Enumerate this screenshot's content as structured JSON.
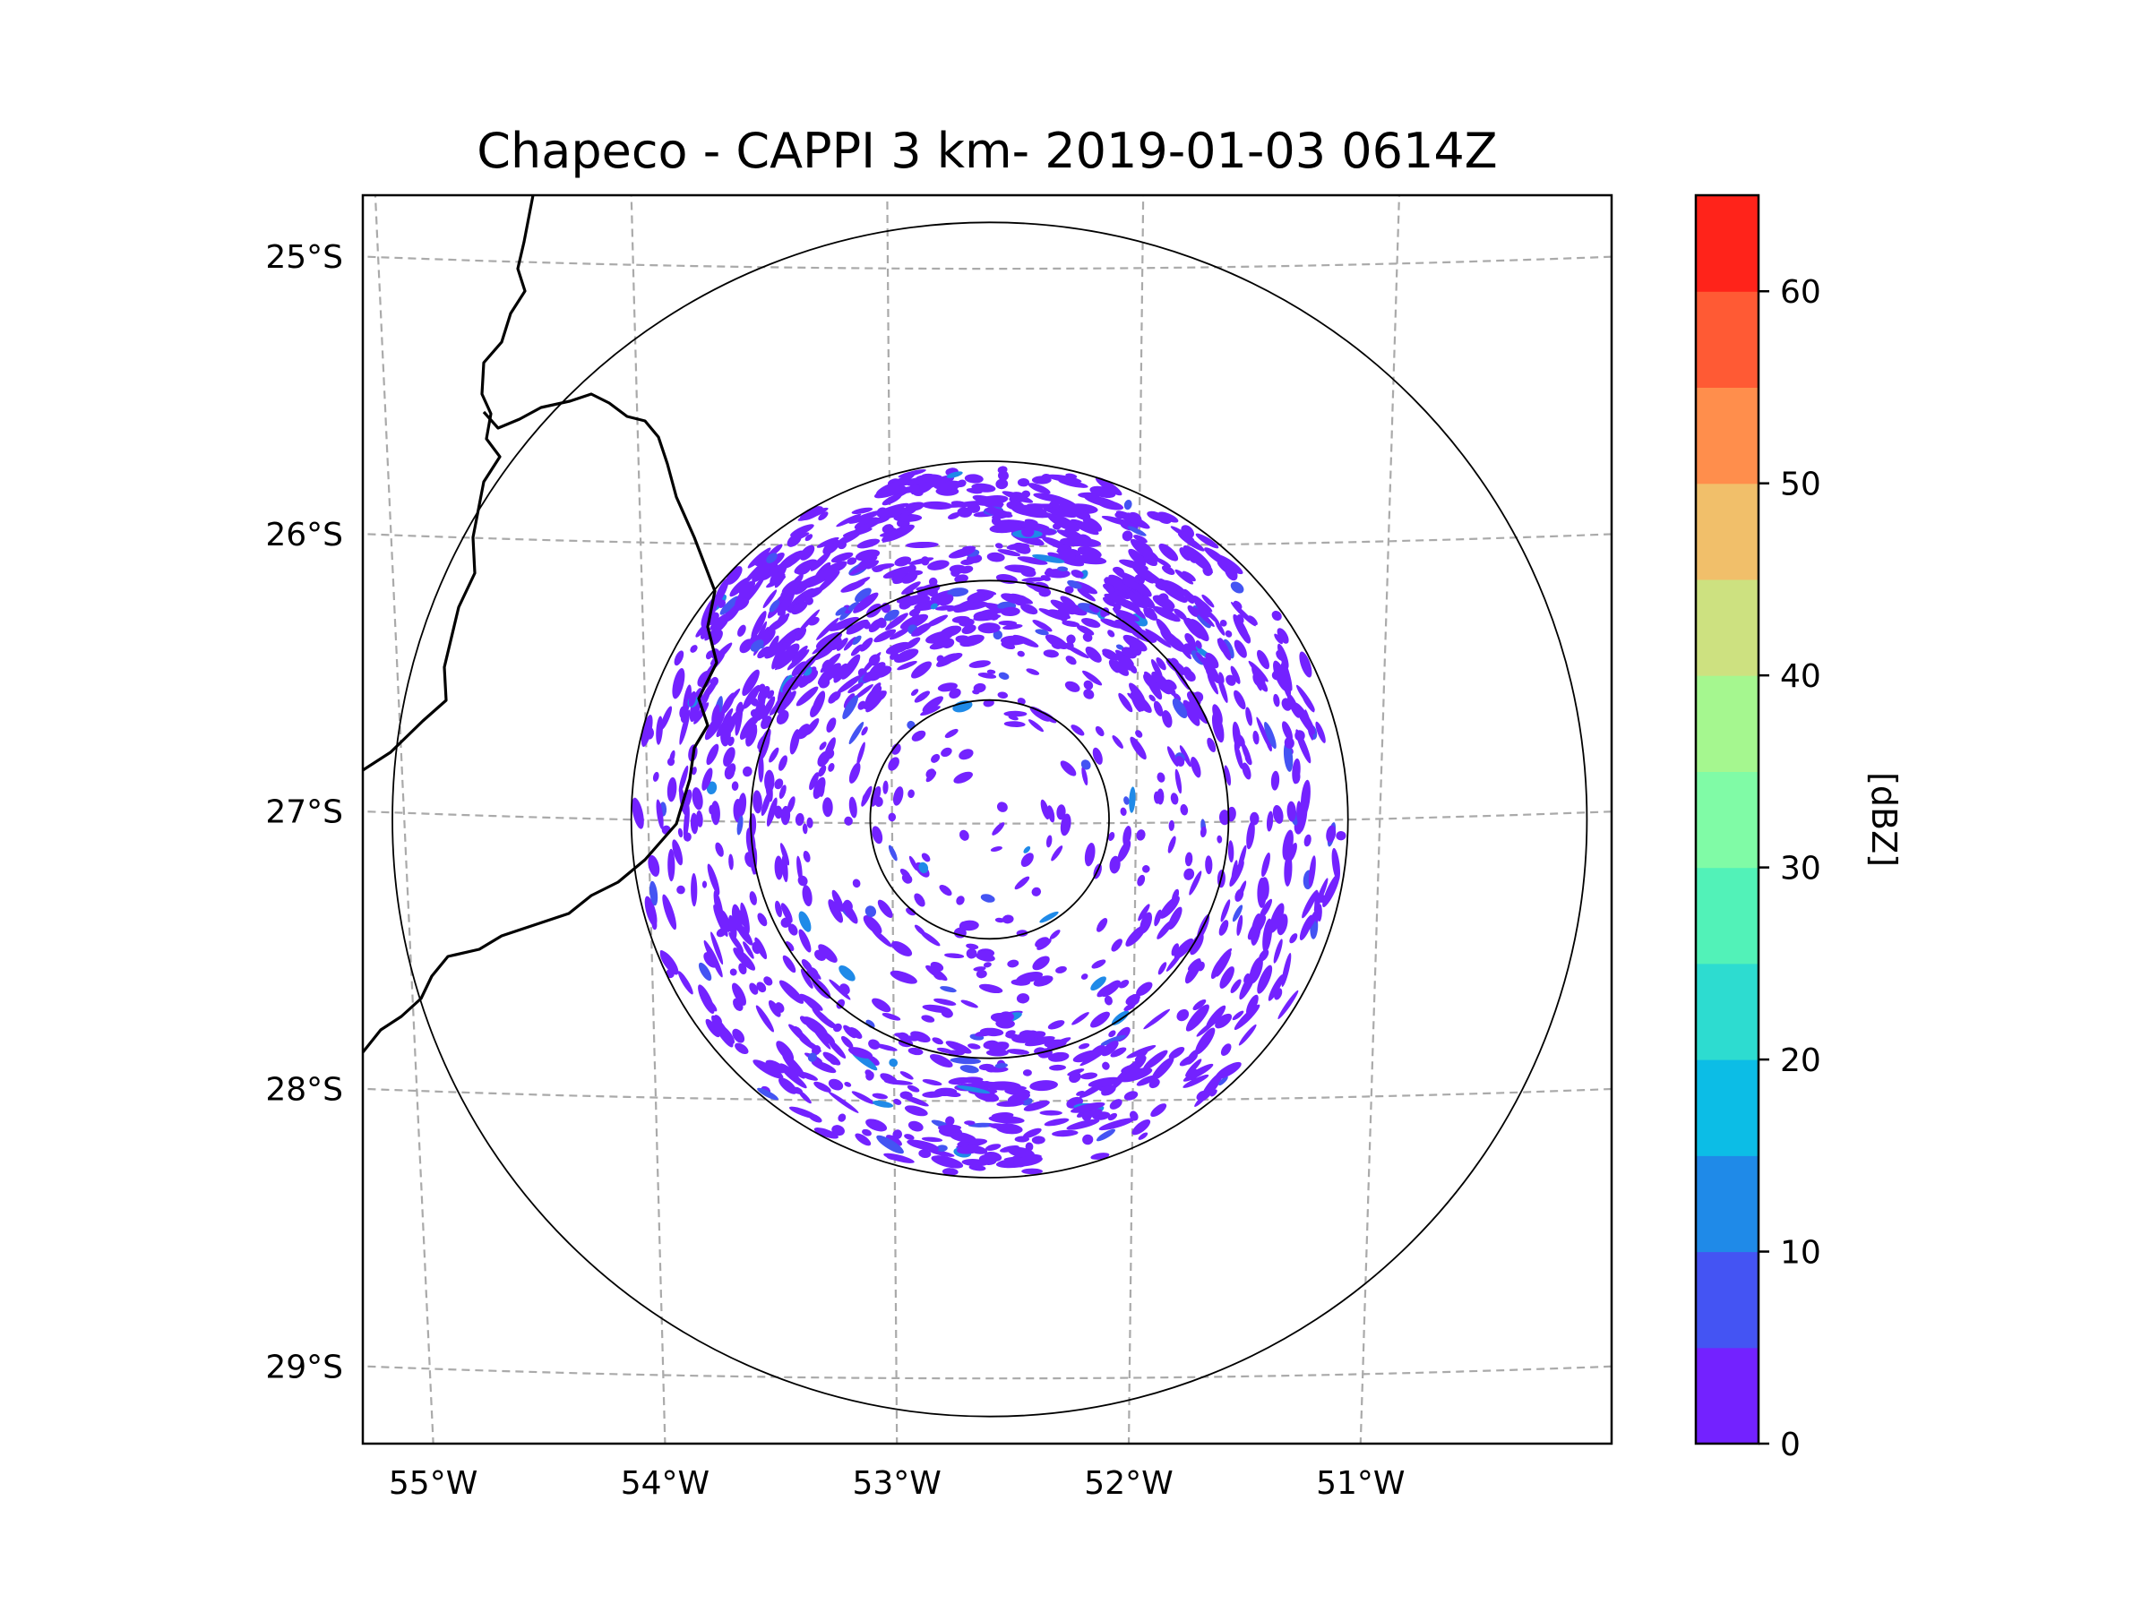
{
  "chart_data": {
    "type": "heatmap",
    "subtype": "radar-cappi-map",
    "title": "Chapeco - CAPPI 3 km- 2019-01-03 0614Z",
    "radar_center": {
      "lon": -52.6,
      "lat": -27.03
    },
    "range_rings_km": [
      50,
      100,
      150,
      250
    ],
    "x_ticks": [
      {
        "lon": -55,
        "label": "55°W"
      },
      {
        "lon": -54,
        "label": "54°W"
      },
      {
        "lon": -53,
        "label": "53°W"
      },
      {
        "lon": -52,
        "label": "52°W"
      },
      {
        "lon": -51,
        "label": "51°W"
      }
    ],
    "y_ticks": [
      {
        "lat": -25,
        "label": "25°S"
      },
      {
        "lat": -26,
        "label": "26°S"
      },
      {
        "lat": -27,
        "label": "27°S"
      },
      {
        "lat": -28,
        "label": "28°S"
      },
      {
        "lat": -29,
        "label": "29°S"
      }
    ],
    "xlim": [
      -55.17,
      -50.05
    ],
    "ylim": [
      -29.28,
      -24.78
    ],
    "colorbar": {
      "label": "[dBZ]",
      "range": [
        0,
        65
      ],
      "ticks": [
        {
          "value": 0,
          "label": "0"
        },
        {
          "value": 10,
          "label": "10"
        },
        {
          "value": 20,
          "label": "20"
        },
        {
          "value": 30,
          "label": "30"
        },
        {
          "value": 40,
          "label": "40"
        },
        {
          "value": 50,
          "label": "50"
        },
        {
          "value": 60,
          "label": "60"
        }
      ],
      "bins": [
        {
          "from": 0,
          "to": 5,
          "color": "#7322ff"
        },
        {
          "from": 5,
          "to": 10,
          "color": "#4454f3"
        },
        {
          "from": 10,
          "to": 15,
          "color": "#1f8ae8"
        },
        {
          "from": 15,
          "to": 20,
          "color": "#0cbde6"
        },
        {
          "from": 20,
          "to": 25,
          "color": "#2ddcd0"
        },
        {
          "from": 25,
          "to": 30,
          "color": "#52f2b8"
        },
        {
          "from": 30,
          "to": 35,
          "color": "#80fba6"
        },
        {
          "from": 35,
          "to": 40,
          "color": "#a5f78f"
        },
        {
          "from": 40,
          "to": 45,
          "color": "#cde180"
        },
        {
          "from": 45,
          "to": 50,
          "color": "#f1bf6a"
        },
        {
          "from": 50,
          "to": 55,
          "color": "#ff8e4c"
        },
        {
          "from": 55,
          "to": 60,
          "color": "#ff5a34"
        },
        {
          "from": 60,
          "to": 65,
          "color": "#ff231a"
        }
      ]
    },
    "echo_summary": {
      "dominant_range_dbz": [
        0,
        5
      ],
      "max_observed_dbz_approx": 15,
      "dense_regions": [
        "north sector 25.5°S–26.7°S",
        "southeast arc 27.8°S–28.5°S"
      ]
    }
  }
}
